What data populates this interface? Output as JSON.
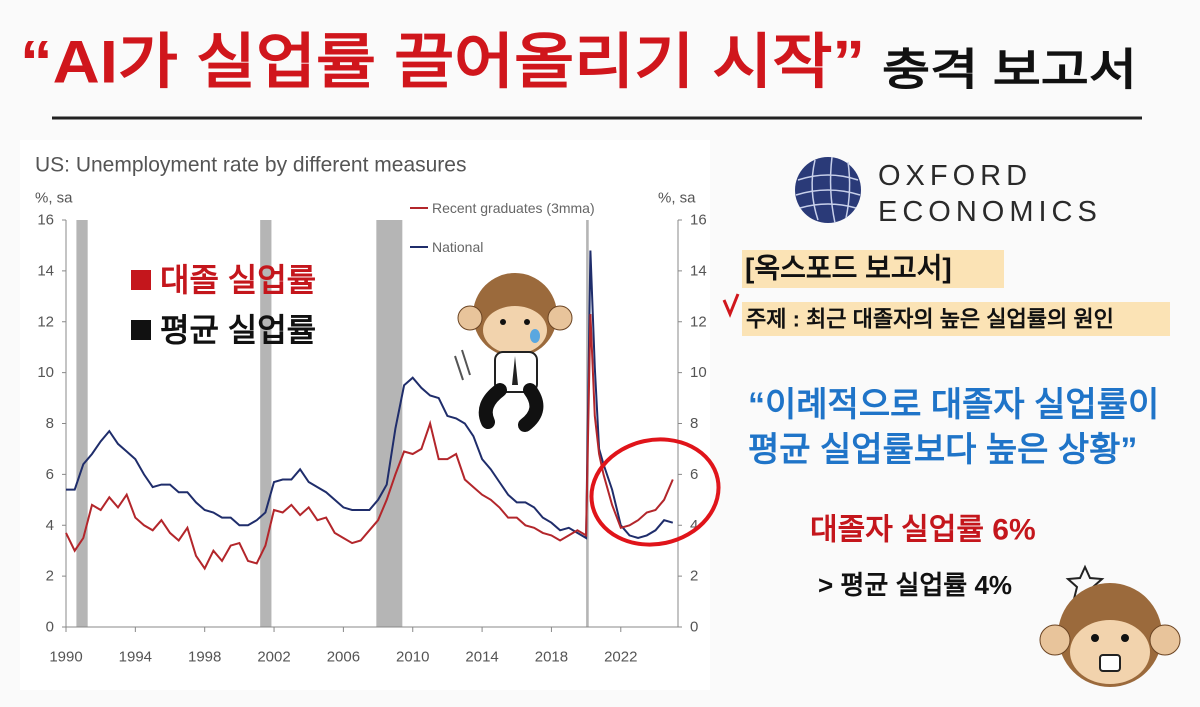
{
  "header": {
    "title": "“AI가 실업률 끌어올리기 시작”",
    "subtitle": "충격 보고서"
  },
  "chart_data": {
    "type": "line",
    "title": "US: Unemployment rate by different measures",
    "y_unit": "%, sa",
    "y2_unit": "%, sa",
    "x": [
      1990,
      1990.5,
      1991,
      1991.5,
      1992,
      1992.5,
      1993,
      1993.5,
      1994,
      1994.5,
      1995,
      1995.5,
      1996,
      1996.5,
      1997,
      1997.5,
      1998,
      1998.5,
      1999,
      1999.5,
      2000,
      2000.5,
      2001,
      2001.5,
      2002,
      2002.5,
      2003,
      2003.5,
      2004,
      2004.5,
      2005,
      2005.5,
      2006,
      2006.5,
      2007,
      2007.5,
      2008,
      2008.5,
      2009,
      2009.5,
      2010,
      2010.5,
      2011,
      2011.5,
      2012,
      2012.5,
      2013,
      2013.5,
      2014,
      2014.5,
      2015,
      2015.5,
      2016,
      2016.5,
      2017,
      2017.5,
      2018,
      2018.5,
      2019,
      2019.5,
      2020,
      2020.25,
      2020.5,
      2020.75,
      2021,
      2021.5,
      2022,
      2022.5,
      2023,
      2023.5,
      2024,
      2024.5,
      2025
    ],
    "series": [
      {
        "name": "Recent graduates (3mma)",
        "color": "#b3262b",
        "values": [
          3.7,
          3.0,
          3.5,
          4.8,
          4.6,
          5.1,
          4.7,
          5.2,
          4.3,
          4.0,
          3.8,
          4.2,
          3.7,
          3.4,
          3.9,
          2.8,
          2.3,
          3.0,
          2.6,
          3.2,
          3.3,
          2.6,
          2.5,
          3.2,
          4.6,
          4.5,
          4.8,
          4.4,
          4.7,
          4.2,
          4.3,
          3.7,
          3.5,
          3.3,
          3.4,
          3.8,
          4.2,
          5.0,
          6.0,
          6.9,
          6.8,
          7.0,
          8.0,
          6.6,
          6.6,
          6.8,
          5.8,
          5.5,
          5.2,
          5.0,
          4.7,
          4.3,
          4.3,
          4.0,
          3.9,
          3.7,
          3.6,
          3.4,
          3.6,
          3.8,
          3.6,
          12.3,
          8.3,
          6.8,
          6.0,
          4.8,
          3.9,
          4.0,
          4.2,
          4.5,
          4.6,
          5.0,
          5.8
        ]
      },
      {
        "name": "National",
        "color": "#1f2d6b",
        "values": [
          5.4,
          5.4,
          6.4,
          6.8,
          7.3,
          7.7,
          7.2,
          6.9,
          6.6,
          6.0,
          5.5,
          5.6,
          5.6,
          5.3,
          5.3,
          4.9,
          4.6,
          4.5,
          4.3,
          4.3,
          4.0,
          4.0,
          4.2,
          4.5,
          5.7,
          5.8,
          5.8,
          6.2,
          5.7,
          5.5,
          5.3,
          5.0,
          4.7,
          4.6,
          4.6,
          4.6,
          5.0,
          5.6,
          7.8,
          9.5,
          9.8,
          9.4,
          9.1,
          9.0,
          8.3,
          8.2,
          8.0,
          7.5,
          6.6,
          6.2,
          5.7,
          5.2,
          4.9,
          4.9,
          4.7,
          4.3,
          4.1,
          3.8,
          3.9,
          3.7,
          3.5,
          14.8,
          10.2,
          7.0,
          6.4,
          5.4,
          4.0,
          3.6,
          3.5,
          3.6,
          3.8,
          4.2,
          4.1
        ]
      }
    ],
    "recessions": [
      [
        1990.6,
        1991.25
      ],
      [
        2001.2,
        2001.85
      ],
      [
        2007.9,
        2009.4
      ],
      [
        2020.0,
        2020.15
      ]
    ],
    "xlim": [
      1990,
      2025.3
    ],
    "ylim": [
      0,
      16
    ],
    "y2lim": [
      0,
      16
    ],
    "xticks": [
      1990,
      1994,
      1998,
      2002,
      2006,
      2010,
      2014,
      2018,
      2022
    ],
    "yticks": [
      0,
      2,
      4,
      6,
      8,
      10,
      12,
      14,
      16
    ],
    "y2ticks": [
      0,
      2,
      4,
      6,
      8,
      10,
      12,
      14,
      16
    ],
    "grid": false,
    "annotations": {
      "graduates": "대졸 실업률",
      "national": "평균 실업률"
    }
  },
  "report": {
    "logo_top": "OXFORD",
    "logo_bottom": "ECONOMICS",
    "tag": "[옥스포드 보고서]",
    "topic": "주제 : 최근 대졸자의 높은 실업률의 원인",
    "quote": [
      "“이례적으로 대졸자 실업률이",
      "평균 실업률보다 높은 상황”"
    ],
    "graduate_rate": "대졸자 실업률 6%",
    "average_rate": "> 평균 실업률 4%"
  }
}
